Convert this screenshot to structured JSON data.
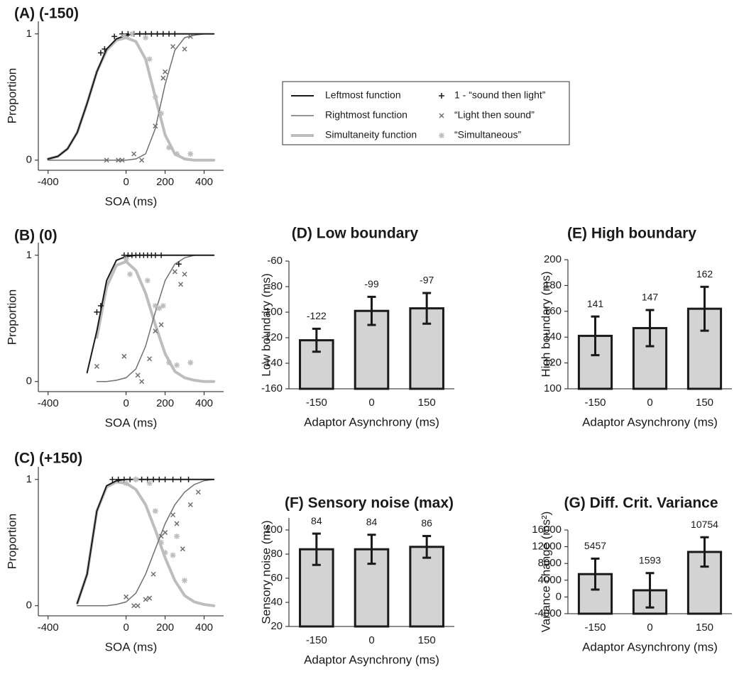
{
  "chart_data": [
    {
      "type": "line",
      "title": "(A) (-150)",
      "x_label": "SOA (ms)",
      "y_label": "Proportion",
      "xlim": [
        -450,
        500
      ],
      "ylim": [
        -0.08,
        1.1
      ],
      "xticks": [
        -400,
        0,
        200,
        400
      ],
      "yticks": [
        0,
        1
      ],
      "x": [
        -400,
        -350,
        -300,
        -250,
        -200,
        -150,
        -100,
        -50,
        0,
        50,
        100,
        150,
        200,
        250,
        300,
        350,
        400,
        450
      ],
      "series": [
        {
          "name": "Leftmost function",
          "color": "#1a1a1a",
          "width": 2,
          "values": [
            0.01,
            0.03,
            0.09,
            0.22,
            0.45,
            0.7,
            0.88,
            0.96,
            0.99,
            1,
            1,
            1,
            1,
            1,
            1,
            1,
            1,
            1
          ]
        },
        {
          "name": "Rightmost function",
          "color": "#707070",
          "width": 1.5,
          "values": [
            0,
            0,
            0,
            0,
            0,
            0,
            0,
            0,
            0,
            0.01,
            0.05,
            0.25,
            0.6,
            0.87,
            0.97,
            0.99,
            1,
            1
          ]
        },
        {
          "name": "Simultaneity function",
          "color": "#bdbdbd",
          "width": 4,
          "values": [
            0.01,
            0.03,
            0.09,
            0.22,
            0.45,
            0.7,
            0.87,
            0.95,
            0.97,
            0.94,
            0.8,
            0.5,
            0.2,
            0.05,
            0.01,
            0,
            0,
            0
          ]
        }
      ],
      "points": [
        {
          "name": "1 - “sound then light”",
          "color": "#1a1a1a",
          "marker": "plus",
          "x": [
            -130,
            -110,
            -60,
            -20,
            10,
            40,
            70,
            100,
            130,
            160,
            190,
            220,
            250
          ],
          "values": [
            0.85,
            0.88,
            0.98,
            1,
            1,
            1,
            1,
            1,
            1,
            1,
            1,
            1,
            1
          ]
        },
        {
          "name": "“Light then sound”",
          "color": "#707070",
          "marker": "cross",
          "x": [
            -100,
            -40,
            -20,
            40,
            80,
            150,
            190,
            200,
            240,
            300,
            330
          ],
          "values": [
            0,
            0,
            0,
            0.05,
            0,
            0.27,
            0.65,
            0.7,
            0.9,
            0.88,
            0.98
          ]
        },
        {
          "name": "“Simultaneous”",
          "color": "#bdbdbd",
          "marker": "asterisk",
          "x": [
            -10,
            30,
            100,
            120,
            150,
            180,
            220,
            260,
            330
          ],
          "values": [
            0.98,
            1,
            0.97,
            0.8,
            0.5,
            0.37,
            0.1,
            0.05,
            0.05
          ]
        }
      ]
    },
    {
      "type": "line",
      "title": "(B) (0)",
      "x_label": "SOA (ms)",
      "y_label": "Proportion",
      "xlim": [
        -450,
        500
      ],
      "ylim": [
        -0.08,
        1.1
      ],
      "xticks": [
        -400,
        0,
        200,
        400
      ],
      "yticks": [
        0,
        1
      ],
      "x": [
        -400,
        -350,
        -300,
        -250,
        -200,
        -150,
        -100,
        -50,
        0,
        50,
        100,
        150,
        200,
        250,
        300,
        350,
        400,
        450
      ],
      "series": [
        {
          "color": "#1a1a1a",
          "width": 2,
          "values": [
            null,
            null,
            null,
            null,
            0.07,
            0.4,
            0.8,
            0.96,
            0.99,
            1,
            1,
            1,
            1,
            1,
            1,
            1,
            1,
            1
          ]
        },
        {
          "color": "#707070",
          "width": 1.5,
          "values": [
            null,
            null,
            null,
            null,
            null,
            0,
            0,
            0.01,
            0.03,
            0.1,
            0.28,
            0.55,
            0.8,
            0.93,
            0.98,
            1,
            1,
            1
          ]
        },
        {
          "color": "#bdbdbd",
          "width": 4,
          "values": [
            null,
            null,
            null,
            null,
            null,
            0.35,
            0.75,
            0.92,
            0.95,
            0.88,
            0.7,
            0.45,
            0.22,
            0.08,
            0.03,
            0.01,
            0,
            0
          ]
        }
      ],
      "points": [
        {
          "color": "#1a1a1a",
          "marker": "plus",
          "x": [
            -150,
            -130,
            -10,
            10,
            30,
            50,
            70,
            90,
            110,
            130,
            150,
            180,
            270
          ],
          "values": [
            0.55,
            0.6,
            1,
            1,
            1,
            1,
            1,
            1,
            1,
            1,
            1,
            1,
            0.93
          ]
        },
        {
          "color": "#707070",
          "marker": "cross",
          "x": [
            -150,
            -10,
            60,
            80,
            120,
            150,
            180,
            250,
            280,
            300
          ],
          "values": [
            0.12,
            0.2,
            0.05,
            0,
            0.18,
            0.4,
            0.45,
            0.87,
            0.77,
            0.85
          ]
        },
        {
          "color": "#bdbdbd",
          "marker": "asterisk",
          "x": [
            0,
            20,
            110,
            150,
            170,
            190,
            220,
            260,
            330
          ],
          "values": [
            0.97,
            0.85,
            0.8,
            0.6,
            0.58,
            0.6,
            0.15,
            0.13,
            0.15
          ]
        }
      ]
    },
    {
      "type": "line",
      "title": "(C) (+150)",
      "x_label": "SOA (ms)",
      "y_label": "Proportion",
      "xlim": [
        -450,
        500
      ],
      "ylim": [
        -0.08,
        1.1
      ],
      "xticks": [
        -400,
        0,
        200,
        400
      ],
      "yticks": [
        0,
        1
      ],
      "x": [
        -400,
        -350,
        -300,
        -250,
        -200,
        -150,
        -100,
        -50,
        0,
        50,
        100,
        150,
        200,
        250,
        300,
        350,
        400,
        450
      ],
      "series": [
        {
          "color": "#1a1a1a",
          "width": 2,
          "values": [
            null,
            null,
            null,
            0.02,
            0.25,
            0.75,
            0.95,
            0.99,
            1,
            1,
            1,
            1,
            1,
            1,
            1,
            1,
            1,
            1
          ]
        },
        {
          "color": "#707070",
          "width": 1.5,
          "values": [
            null,
            null,
            null,
            0,
            0,
            0,
            0,
            0.01,
            0.03,
            0.1,
            0.25,
            0.45,
            0.65,
            0.8,
            0.9,
            0.96,
            0.99,
            1
          ]
        },
        {
          "color": "#bdbdbd",
          "width": 4,
          "values": [
            null,
            null,
            null,
            0.02,
            0.25,
            0.75,
            0.94,
            0.98,
            0.97,
            0.92,
            0.8,
            0.6,
            0.38,
            0.2,
            0.08,
            0.03,
            0.01,
            0
          ]
        }
      ],
      "points": [
        {
          "color": "#1a1a1a",
          "marker": "plus",
          "x": [
            -70,
            -40,
            -10,
            20,
            50,
            80,
            110,
            140,
            170,
            200,
            240,
            280,
            320
          ],
          "values": [
            1,
            1,
            1,
            1,
            1,
            1,
            1,
            1,
            1,
            1,
            1,
            1,
            1
          ]
        },
        {
          "color": "#707070",
          "marker": "cross",
          "x": [
            0,
            40,
            60,
            100,
            120,
            140,
            180,
            200,
            240,
            260,
            290,
            330,
            370
          ],
          "values": [
            0.07,
            0,
            0,
            0.05,
            0.06,
            0.25,
            0.55,
            0.58,
            0.72,
            0.65,
            0.45,
            0.8,
            0.9
          ]
        },
        {
          "color": "#bdbdbd",
          "marker": "asterisk",
          "x": [
            0,
            50,
            120,
            150,
            180,
            200,
            240,
            260,
            300
          ],
          "values": [
            0.97,
            1,
            0.97,
            0.75,
            0.5,
            0.42,
            0.4,
            0.55,
            0.2
          ]
        }
      ]
    },
    {
      "type": "bar",
      "title": "(D) Low boundary",
      "x_label": "Adaptor Asynchrony (ms)",
      "y_label": "Low boundary (ms)",
      "categories": [
        "-150",
        "0",
        "150"
      ],
      "values": [
        -122,
        -99,
        -97
      ],
      "errors": [
        9,
        11,
        12
      ],
      "color": "#d3d3d3",
      "ylim": [
        -160,
        -60
      ],
      "yticks": [
        -160,
        -140,
        -120,
        -100,
        -80,
        -60
      ]
    },
    {
      "type": "bar",
      "title": "(E) High boundary",
      "x_label": "Adaptor Asynchrony (ms)",
      "y_label": "High boundary (ms)",
      "categories": [
        "-150",
        "0",
        "150"
      ],
      "values": [
        141,
        147,
        162
      ],
      "errors": [
        15,
        14,
        17
      ],
      "color": "#d3d3d3",
      "ylim": [
        100,
        200
      ],
      "yticks": [
        100,
        120,
        140,
        160,
        180,
        200
      ]
    },
    {
      "type": "bar",
      "title": "(F) Sensory noise (max)",
      "x_label": "Adaptor Asynchrony (ms)",
      "y_label": "Sensory noise (ms)",
      "categories": [
        "-150",
        "0",
        "150"
      ],
      "values": [
        84,
        84,
        86
      ],
      "errors": [
        13,
        12,
        9
      ],
      "color": "#d3d3d3",
      "ylim": [
        20,
        110
      ],
      "yticks": [
        20,
        40,
        60,
        80,
        100
      ]
    },
    {
      "type": "bar",
      "title": "(G) Diff. Crit. Variance",
      "x_label": "Adaptor Asynchrony (ms)",
      "y_label": "Variance change (ms²)",
      "categories": [
        "-150",
        "0",
        "150"
      ],
      "values": [
        5457,
        1593,
        10754
      ],
      "errors": [
        3700,
        4100,
        3500
      ],
      "color": "#d3d3d3",
      "ylim": [
        -4000,
        16000
      ],
      "yticks": [
        -4000,
        0,
        4000,
        8000,
        12000,
        16000
      ]
    }
  ]
}
